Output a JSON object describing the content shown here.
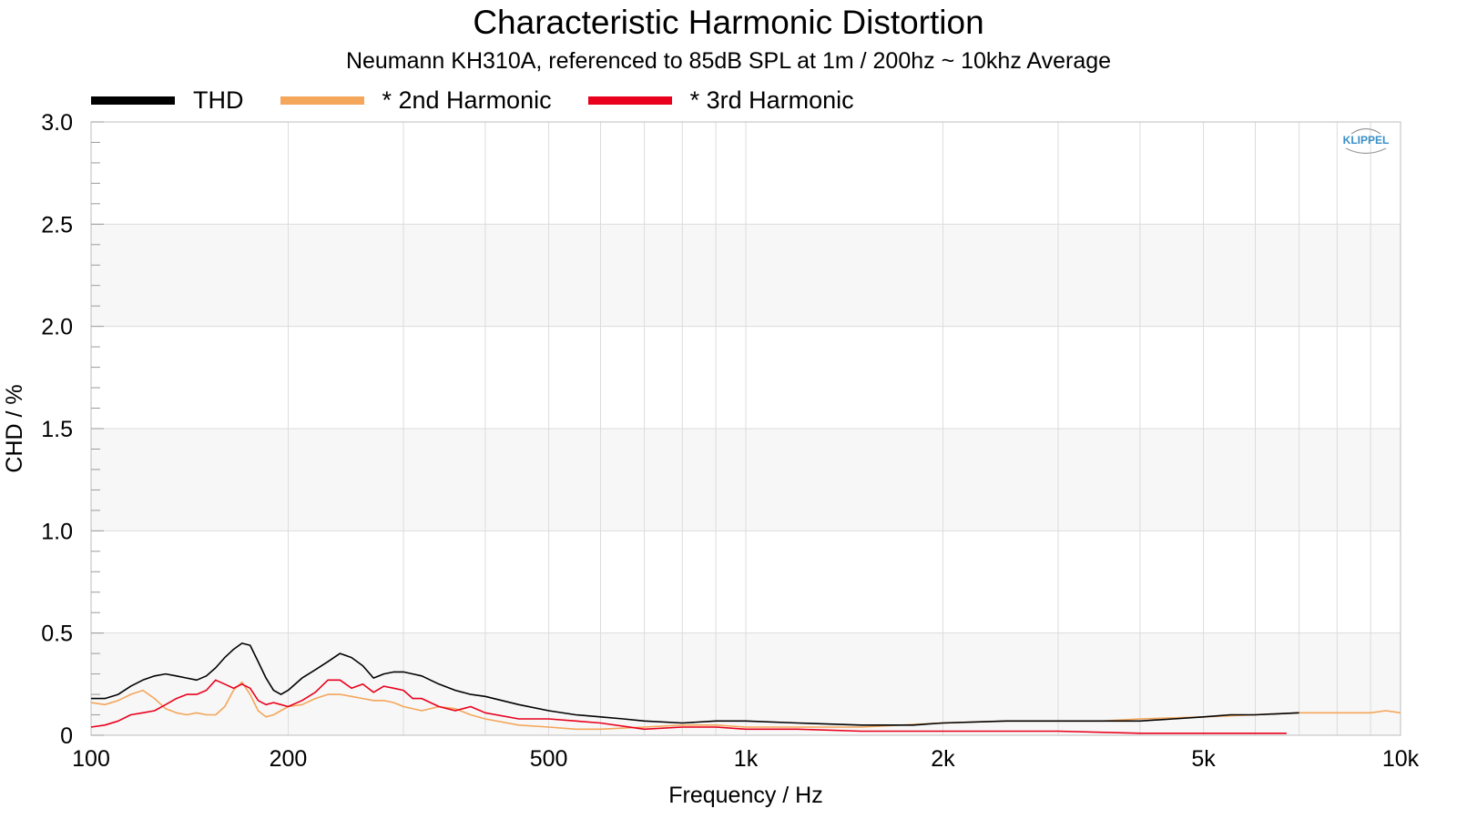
{
  "chart_data": {
    "type": "line",
    "title": "Characteristic Harmonic Distortion",
    "subtitle": "Neumann KH310A, referenced to 85dB SPL at 1m / 200hz ~ 10khz Average",
    "xlabel": "Frequency / Hz",
    "ylabel": "CHD / %",
    "xscale": "log",
    "xlim": [
      100,
      10000
    ],
    "ylim": [
      0,
      3.0
    ],
    "x_ticks": [
      100,
      200,
      500,
      1000,
      2000,
      5000,
      10000
    ],
    "x_tick_labels": [
      "100",
      "200",
      "500",
      "1k",
      "2k",
      "5k",
      "10k"
    ],
    "y_ticks": [
      0,
      0.5,
      1.0,
      1.5,
      2.0,
      2.5,
      3.0
    ],
    "y_tick_labels": [
      "0",
      "0.5",
      "1.0",
      "1.5",
      "2.0",
      "2.5",
      "3.0"
    ],
    "grid": true,
    "legend_position": "top-left",
    "logo": "KLIPPEL",
    "series": [
      {
        "name": "THD",
        "color": "#000000",
        "x": [
          100,
          105,
          110,
          115,
          120,
          125,
          130,
          135,
          140,
          145,
          150,
          155,
          160,
          165,
          170,
          175,
          180,
          185,
          190,
          195,
          200,
          210,
          220,
          230,
          240,
          250,
          260,
          270,
          280,
          290,
          300,
          310,
          320,
          340,
          360,
          380,
          400,
          450,
          500,
          550,
          600,
          650,
          700,
          800,
          900,
          1000,
          1200,
          1500,
          1800,
          2000,
          2500,
          3000,
          3500,
          4000,
          4500,
          5000,
          5500,
          6000,
          7000
        ],
        "y": [
          0.18,
          0.18,
          0.2,
          0.24,
          0.27,
          0.29,
          0.3,
          0.29,
          0.28,
          0.27,
          0.29,
          0.33,
          0.38,
          0.42,
          0.45,
          0.44,
          0.36,
          0.28,
          0.22,
          0.2,
          0.22,
          0.28,
          0.32,
          0.36,
          0.4,
          0.38,
          0.34,
          0.28,
          0.3,
          0.31,
          0.31,
          0.3,
          0.29,
          0.25,
          0.22,
          0.2,
          0.19,
          0.15,
          0.12,
          0.1,
          0.09,
          0.08,
          0.07,
          0.06,
          0.07,
          0.07,
          0.06,
          0.05,
          0.05,
          0.06,
          0.07,
          0.07,
          0.07,
          0.07,
          0.08,
          0.09,
          0.1,
          0.1,
          0.11
        ]
      },
      {
        "name": "* 2nd Harmonic",
        "color": "#f4a65a",
        "x": [
          100,
          105,
          110,
          115,
          120,
          125,
          130,
          135,
          140,
          145,
          150,
          155,
          160,
          165,
          170,
          175,
          180,
          185,
          190,
          200,
          210,
          220,
          230,
          240,
          250,
          260,
          270,
          280,
          290,
          300,
          320,
          340,
          360,
          380,
          400,
          450,
          500,
          550,
          600,
          700,
          800,
          900,
          1000,
          1200,
          1500,
          2000,
          2500,
          3000,
          3500,
          4000,
          5000,
          6000,
          7000,
          8000,
          9000,
          9500,
          10000
        ],
        "y": [
          0.16,
          0.15,
          0.17,
          0.2,
          0.22,
          0.18,
          0.13,
          0.11,
          0.1,
          0.11,
          0.1,
          0.1,
          0.14,
          0.22,
          0.26,
          0.2,
          0.12,
          0.09,
          0.1,
          0.14,
          0.15,
          0.18,
          0.2,
          0.2,
          0.19,
          0.18,
          0.17,
          0.17,
          0.16,
          0.14,
          0.12,
          0.14,
          0.13,
          0.1,
          0.08,
          0.05,
          0.04,
          0.03,
          0.03,
          0.04,
          0.05,
          0.05,
          0.04,
          0.04,
          0.04,
          0.06,
          0.07,
          0.07,
          0.07,
          0.08,
          0.09,
          0.1,
          0.11,
          0.11,
          0.11,
          0.12,
          0.11
        ]
      },
      {
        "name": "* 3rd Harmonic",
        "color": "#e8001c",
        "x": [
          100,
          105,
          110,
          115,
          120,
          125,
          130,
          135,
          140,
          145,
          150,
          155,
          160,
          165,
          170,
          175,
          180,
          185,
          190,
          195,
          200,
          210,
          220,
          230,
          240,
          250,
          260,
          270,
          280,
          290,
          300,
          310,
          320,
          340,
          360,
          380,
          400,
          450,
          500,
          550,
          600,
          700,
          800,
          900,
          1000,
          1200,
          1500,
          2000,
          3000,
          4000,
          5000,
          6000,
          6700
        ],
        "y": [
          0.04,
          0.05,
          0.07,
          0.1,
          0.11,
          0.12,
          0.15,
          0.18,
          0.2,
          0.2,
          0.22,
          0.27,
          0.25,
          0.23,
          0.25,
          0.23,
          0.17,
          0.15,
          0.16,
          0.15,
          0.14,
          0.17,
          0.21,
          0.27,
          0.27,
          0.23,
          0.25,
          0.21,
          0.24,
          0.23,
          0.22,
          0.18,
          0.18,
          0.14,
          0.12,
          0.14,
          0.11,
          0.08,
          0.08,
          0.07,
          0.06,
          0.03,
          0.04,
          0.04,
          0.03,
          0.03,
          0.02,
          0.02,
          0.02,
          0.01,
          0.01,
          0.01,
          0.01
        ]
      }
    ]
  }
}
